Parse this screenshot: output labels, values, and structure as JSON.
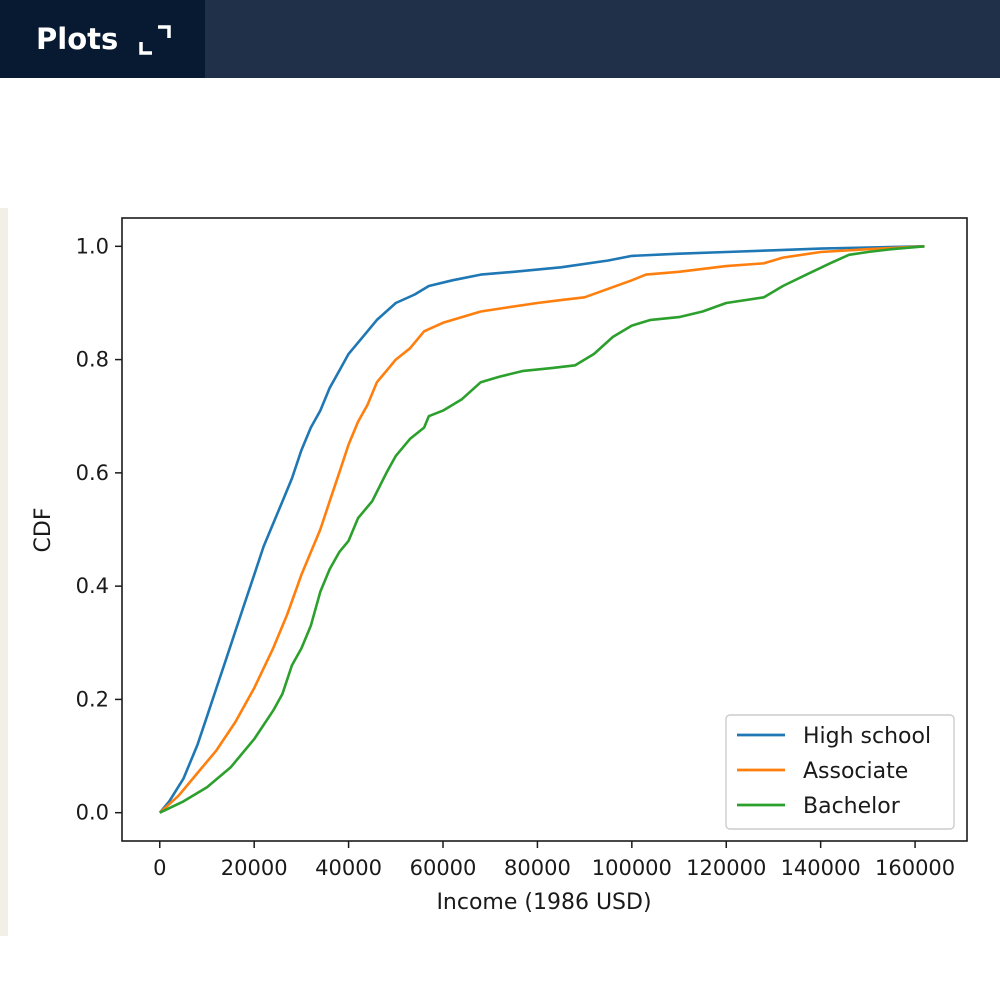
{
  "header": {
    "tab_label": "Plots",
    "expand_icon": "expand-icon"
  },
  "colors": {
    "header_bg": "#213049",
    "tab_bg": "#071a31"
  },
  "chart_data": {
    "type": "line",
    "title": "",
    "xlabel": "Income (1986 USD)",
    "ylabel": "CDF",
    "xlim": [
      -8000,
      171000
    ],
    "ylim": [
      -0.05,
      1.05
    ],
    "xticks": [
      0,
      20000,
      40000,
      60000,
      80000,
      100000,
      120000,
      140000,
      160000
    ],
    "xtick_labels": [
      "0",
      "20000",
      "40000",
      "60000",
      "80000",
      "100000",
      "120000",
      "140000",
      "160000"
    ],
    "yticks": [
      0.0,
      0.2,
      0.4,
      0.6,
      0.8,
      1.0
    ],
    "ytick_labels": [
      "0.0",
      "0.2",
      "0.4",
      "0.6",
      "0.8",
      "1.0"
    ],
    "grid": false,
    "legend_position": "lower-right",
    "series": [
      {
        "name": "High school",
        "color": "#1f77b4",
        "points": [
          [
            0,
            0.0
          ],
          [
            2000,
            0.02
          ],
          [
            5000,
            0.06
          ],
          [
            8000,
            0.12
          ],
          [
            10000,
            0.17
          ],
          [
            12000,
            0.22
          ],
          [
            14000,
            0.27
          ],
          [
            16000,
            0.32
          ],
          [
            18000,
            0.37
          ],
          [
            20000,
            0.42
          ],
          [
            22000,
            0.47
          ],
          [
            24000,
            0.51
          ],
          [
            26000,
            0.55
          ],
          [
            28000,
            0.59
          ],
          [
            30000,
            0.64
          ],
          [
            32000,
            0.68
          ],
          [
            34000,
            0.71
          ],
          [
            36000,
            0.75
          ],
          [
            38000,
            0.78
          ],
          [
            40000,
            0.81
          ],
          [
            43000,
            0.84
          ],
          [
            46000,
            0.87
          ],
          [
            50000,
            0.9
          ],
          [
            54000,
            0.915
          ],
          [
            57000,
            0.93
          ],
          [
            62000,
            0.94
          ],
          [
            68000,
            0.95
          ],
          [
            75000,
            0.955
          ],
          [
            85000,
            0.963
          ],
          [
            95000,
            0.975
          ],
          [
            100000,
            0.983
          ],
          [
            110000,
            0.987
          ],
          [
            120000,
            0.99
          ],
          [
            130000,
            0.993
          ],
          [
            140000,
            0.996
          ],
          [
            150000,
            0.998
          ],
          [
            162000,
            1.0
          ]
        ]
      },
      {
        "name": "Associate",
        "color": "#ff7f0e",
        "points": [
          [
            0,
            0.0
          ],
          [
            4000,
            0.03
          ],
          [
            8000,
            0.07
          ],
          [
            12000,
            0.11
          ],
          [
            16000,
            0.16
          ],
          [
            20000,
            0.22
          ],
          [
            24000,
            0.29
          ],
          [
            27000,
            0.35
          ],
          [
            30000,
            0.42
          ],
          [
            32000,
            0.46
          ],
          [
            34000,
            0.5
          ],
          [
            36000,
            0.55
          ],
          [
            38000,
            0.6
          ],
          [
            40000,
            0.65
          ],
          [
            42000,
            0.69
          ],
          [
            44000,
            0.72
          ],
          [
            46000,
            0.76
          ],
          [
            48000,
            0.78
          ],
          [
            50000,
            0.8
          ],
          [
            53000,
            0.82
          ],
          [
            56000,
            0.85
          ],
          [
            60000,
            0.865
          ],
          [
            64000,
            0.875
          ],
          [
            68000,
            0.885
          ],
          [
            72000,
            0.89
          ],
          [
            80000,
            0.9
          ],
          [
            85000,
            0.905
          ],
          [
            90000,
            0.91
          ],
          [
            95000,
            0.925
          ],
          [
            100000,
            0.94
          ],
          [
            103000,
            0.95
          ],
          [
            110000,
            0.955
          ],
          [
            120000,
            0.965
          ],
          [
            128000,
            0.97
          ],
          [
            132000,
            0.98
          ],
          [
            140000,
            0.99
          ],
          [
            150000,
            0.995
          ],
          [
            162000,
            1.0
          ]
        ]
      },
      {
        "name": "Bachelor",
        "color": "#2ca02c",
        "points": [
          [
            0,
            0.0
          ],
          [
            5000,
            0.02
          ],
          [
            10000,
            0.045
          ],
          [
            15000,
            0.08
          ],
          [
            20000,
            0.13
          ],
          [
            24000,
            0.18
          ],
          [
            26000,
            0.21
          ],
          [
            28000,
            0.26
          ],
          [
            30000,
            0.29
          ],
          [
            32000,
            0.33
          ],
          [
            34000,
            0.39
          ],
          [
            36000,
            0.43
          ],
          [
            38000,
            0.46
          ],
          [
            40000,
            0.48
          ],
          [
            42000,
            0.52
          ],
          [
            45000,
            0.55
          ],
          [
            48000,
            0.6
          ],
          [
            50000,
            0.63
          ],
          [
            53000,
            0.66
          ],
          [
            56000,
            0.68
          ],
          [
            57000,
            0.7
          ],
          [
            60000,
            0.71
          ],
          [
            64000,
            0.73
          ],
          [
            68000,
            0.76
          ],
          [
            72000,
            0.77
          ],
          [
            77000,
            0.78
          ],
          [
            83000,
            0.785
          ],
          [
            88000,
            0.79
          ],
          [
            92000,
            0.81
          ],
          [
            96000,
            0.84
          ],
          [
            100000,
            0.86
          ],
          [
            104000,
            0.87
          ],
          [
            110000,
            0.875
          ],
          [
            115000,
            0.885
          ],
          [
            120000,
            0.9
          ],
          [
            128000,
            0.91
          ],
          [
            132000,
            0.93
          ],
          [
            137000,
            0.95
          ],
          [
            142000,
            0.97
          ],
          [
            146000,
            0.985
          ],
          [
            150000,
            0.99
          ],
          [
            155000,
            0.995
          ],
          [
            162000,
            1.0
          ]
        ]
      }
    ]
  }
}
